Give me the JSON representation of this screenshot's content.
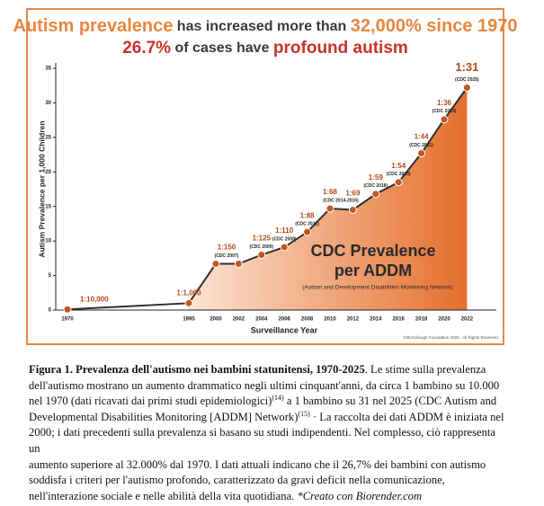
{
  "chart_data": {
    "type": "line",
    "title_lines": [
      [
        {
          "text": "Autism prevalence",
          "color": "#e8863f"
        },
        {
          "text": " has increased more than ",
          "color": "#3a3a3a"
        },
        {
          "text": "32,000%",
          "color": "#e8863f"
        },
        {
          "text": " since 1970",
          "color": "#e8863f"
        }
      ],
      [
        {
          "text": "26.7%",
          "color": "#c8322a"
        },
        {
          "text": " of cases have ",
          "color": "#3a3a3a"
        },
        {
          "text": "profound autism",
          "color": "#c8322a"
        }
      ]
    ],
    "y_label": "Autism Prevalence per 1,000 Children",
    "x_label": "Surveillance Year",
    "categories": [
      "1970",
      "1995",
      "2000",
      "2002",
      "2004",
      "2006",
      "2008",
      "2010",
      "2012",
      "2014",
      "2016",
      "2018",
      "2020",
      "2022"
    ],
    "values": [
      0.1,
      1,
      6.7,
      6.7,
      8,
      9.1,
      11.3,
      14.7,
      14.5,
      16.8,
      18.5,
      22.7,
      27.6,
      32.2
    ],
    "color": "#2f2f2f",
    "marker_color": "#c4561f",
    "point_labels": [
      "1:10,000",
      "1:1,000",
      "1:150",
      null,
      "1:125",
      "1:110",
      "1:88",
      "1:68",
      "1:69",
      "1:59",
      "1:54",
      "1:44",
      "1:36",
      "1:31"
    ],
    "point_notes": [
      null,
      null,
      "(CDC 2007)",
      null,
      "(CDC 2009)",
      "(CDC 2009)",
      "(CDC 2012)",
      "(CDC 2014-2016)",
      null,
      "(CDC 2018)",
      "(CDC 2020)",
      "(CDC 2021)",
      "(CDC 2023)",
      "(CDC 2025)"
    ],
    "inner_title_lines": [
      "CDC Prevalence",
      "per ADDM"
    ],
    "inner_subtitle": "(Autism and Development Disabilities Monitoring Network)",
    "copyright": "©McCullough Foundation 2025 - All Rights Reserved.",
    "ylim": [
      0,
      35
    ],
    "yticks": [
      0,
      5,
      10,
      15,
      20,
      25,
      30,
      35
    ],
    "grid": false
  },
  "caption": {
    "lines": [
      [
        {
          "text": "Figura 1. Prevalenza dell'autismo nei bambini statunitensi, 1970-2025",
          "style": "bold"
        },
        {
          "text": ". Le stime sulla prevalenza",
          "style": "normal"
        }
      ],
      [
        {
          "text": "dell'autismo mostrano un aumento drammatico negli ultimi cinquant'anni, da circa 1 bambino su 10.000",
          "style": "normal"
        }
      ],
      [
        {
          "text": "nel 1970 (dati ricavati dai primi studi epidemiologici)",
          "style": "normal"
        },
        {
          "text": "(14)",
          "style": "sup"
        },
        {
          "text": " a 1 bambino su 31 nel 2025 (CDC Autism and",
          "style": "normal"
        }
      ],
      [
        {
          "text": "Developmental Disabilities Monitoring [ADDM] Network)",
          "style": "normal"
        },
        {
          "text": "(15)",
          "style": "sup"
        },
        {
          "text": " · La raccolta dei dati ADDM è iniziata nel",
          "style": "normal"
        }
      ],
      [
        {
          "text": "2000; i dati precedenti sulla prevalenza si basano su studi indipendenti. Nel complesso, ciò rappresenta",
          "style": "normal"
        }
      ],
      [
        {
          "text": "un",
          "style": "normal"
        }
      ],
      [
        {
          "text": "aumento superiore al 32.000% dal 1970. I dati attuali indicano che il 26,7% dei bambini con autismo",
          "style": "normal"
        }
      ],
      [
        {
          "text": "soddisfa i criteri per l'autismo profondo, caratterizzato da gravi deficit nella comunicazione,",
          "style": "normal"
        }
      ],
      [
        {
          "text": "nell'interazione sociale e nelle abilità della vita quotidiana. ",
          "style": "normal"
        },
        {
          "text": "*Creato con Biorender.com",
          "style": "italic"
        }
      ]
    ]
  }
}
